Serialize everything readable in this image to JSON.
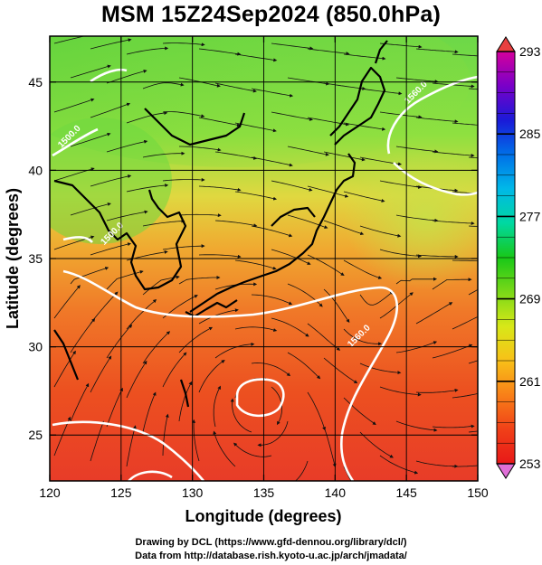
{
  "title": "MSM 15Z24Sep2024 (850.0hPa)",
  "map": {
    "xlabel": "Longitude (degrees)",
    "ylabel": "Latitude  (degrees)",
    "xlim": [
      120,
      150
    ],
    "ylim": [
      22.4,
      47.6
    ],
    "xticks": [
      120,
      125,
      130,
      135,
      140,
      145,
      150
    ],
    "yticks": [
      25,
      30,
      35,
      40,
      45
    ],
    "grid": true,
    "field": "temperature with streamlines",
    "contour_labels": [
      {
        "text": "1560.0",
        "lon": 145.8,
        "lat": 44.3
      },
      {
        "text": "1560.0",
        "lon": 141.8,
        "lat": 30.5
      },
      {
        "text": "1500.0",
        "lon": 121.5,
        "lat": 41.8
      },
      {
        "text": "1500.0",
        "lon": 124.5,
        "lat": 36.3
      }
    ]
  },
  "colorbar": {
    "min": 253,
    "max": 293,
    "ticks": [
      293,
      285,
      277,
      269,
      261,
      253
    ],
    "colors": [
      "#d4009c",
      "#7a00c8",
      "#1a1ad8",
      "#0070e8",
      "#00b8e8",
      "#00d8a0",
      "#18c818",
      "#7ad818",
      "#d8e818",
      "#f8c018",
      "#f88018",
      "#f04018",
      "#e81818"
    ]
  },
  "credits": [
    "Drawing by DCL (https://www.gfd-dennou.org/library/dcl/)",
    "Data from http://database.rish.kyoto-u.ac.jp/arch/jmadata/"
  ]
}
